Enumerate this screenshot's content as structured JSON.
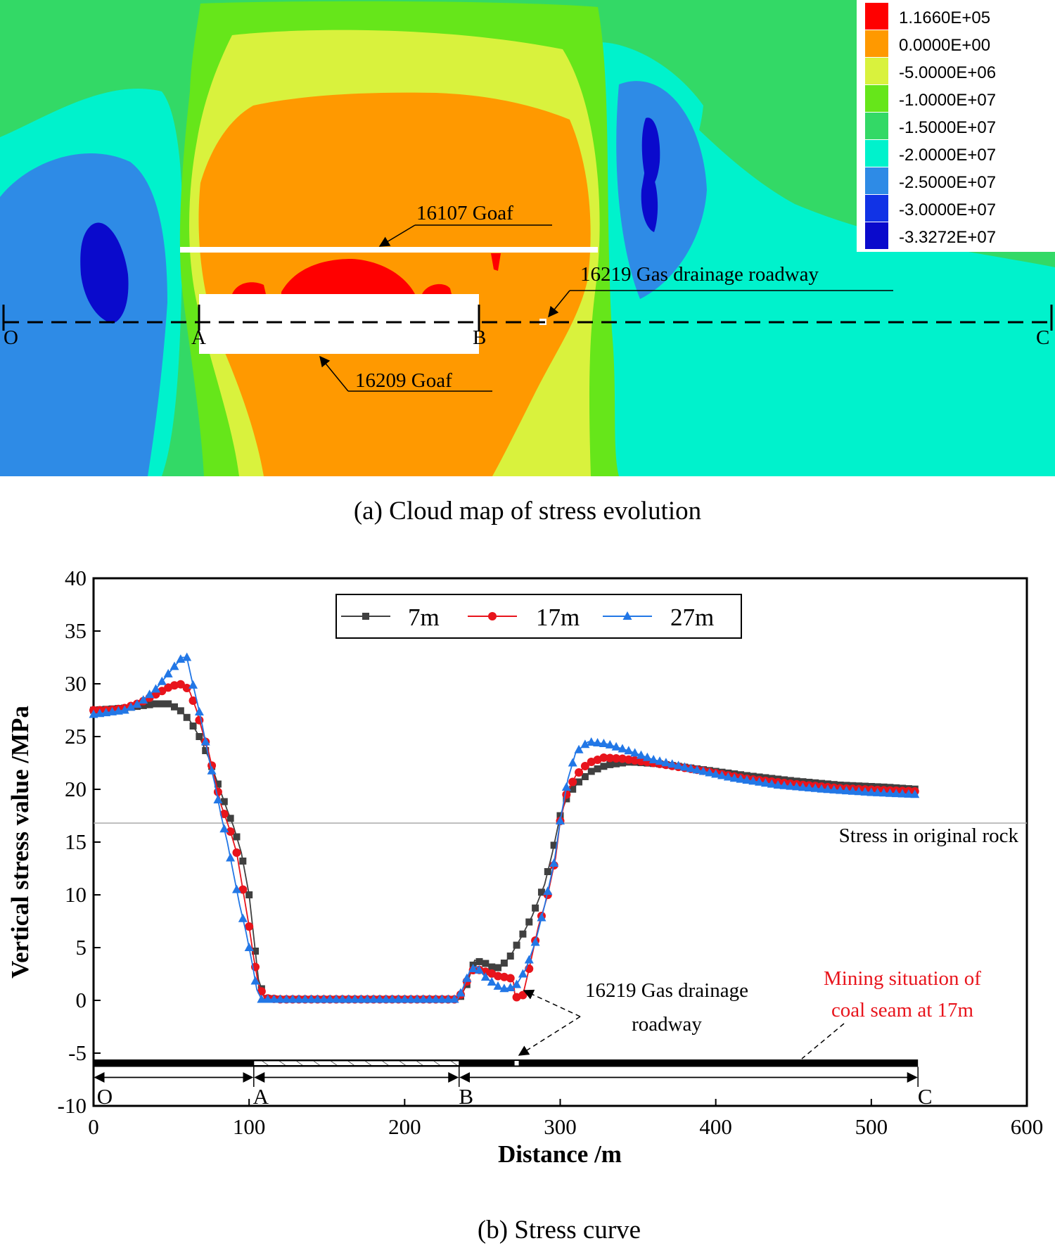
{
  "stress_map": {
    "caption": "(a) Cloud map of stress evolution",
    "legend": [
      {
        "label": "1.1660E+05",
        "color": "#ff0000"
      },
      {
        "label": "0.0000E+00",
        "color": "#ff9900"
      },
      {
        "label": "-5.0000E+06",
        "color": "#d9f23d"
      },
      {
        "label": "-1.0000E+07",
        "color": "#66e61a"
      },
      {
        "label": "-1.5000E+07",
        "color": "#33d966"
      },
      {
        "label": "-2.0000E+07",
        "color": "#00f2cc"
      },
      {
        "label": "-2.5000E+07",
        "color": "#2e8be6"
      },
      {
        "label": "-3.0000E+07",
        "color": "#1133e6"
      },
      {
        "label": "-3.3272E+07",
        "color": "#0a0acc"
      }
    ],
    "labels": {
      "goaf_16107": "16107 Goaf",
      "goaf_16209": "16209 Goaf",
      "roadway": "16219 Gas drainage roadway",
      "point_o": "O",
      "point_a": "A",
      "point_b": "B",
      "point_c": "C"
    },
    "colors": {
      "red": "#ff0000",
      "orange": "#ff9900",
      "yellow": "#d9f23d",
      "lime": "#66e61a",
      "green": "#33d966",
      "cyan": "#00f2cc",
      "lightblue": "#2e8be6",
      "blue": "#1133e6",
      "darkblue": "#0a0acc"
    }
  },
  "chart_data": {
    "type": "line",
    "caption": "(b) Stress curve",
    "xlabel": "Distance /m",
    "ylabel": "Vertical stress value /MPa",
    "xlim": [
      0,
      600
    ],
    "ylim": [
      -10,
      40
    ],
    "xticks": [
      0,
      100,
      200,
      300,
      400,
      500,
      600
    ],
    "yticks": [
      -10,
      -5,
      0,
      5,
      10,
      15,
      20,
      25,
      30,
      35,
      40
    ],
    "legend_position": "top-center",
    "series": [
      {
        "name": "7m",
        "color": "#404040",
        "marker": "square",
        "points": [
          [
            0,
            27.5
          ],
          [
            10,
            27.6
          ],
          [
            20,
            27.7
          ],
          [
            30,
            27.9
          ],
          [
            40,
            28.1
          ],
          [
            48,
            28.1
          ],
          [
            55,
            27.6
          ],
          [
            62,
            26.5
          ],
          [
            68,
            25
          ],
          [
            74,
            23
          ],
          [
            80,
            20.5
          ],
          [
            86,
            18
          ],
          [
            90,
            16.5
          ],
          [
            95,
            14
          ],
          [
            100,
            10
          ],
          [
            103,
            6
          ],
          [
            106,
            2
          ],
          [
            110,
            0.2
          ],
          [
            120,
            0.1
          ],
          [
            235,
            0.1
          ],
          [
            240,
            1.5
          ],
          [
            245,
            3.8
          ],
          [
            252,
            3.5
          ],
          [
            258,
            3
          ],
          [
            262,
            3.2
          ],
          [
            268,
            4.2
          ],
          [
            275,
            6
          ],
          [
            282,
            8
          ],
          [
            290,
            11
          ],
          [
            295,
            14
          ],
          [
            300,
            17.5
          ],
          [
            305,
            19.5
          ],
          [
            312,
            20.7
          ],
          [
            320,
            21.7
          ],
          [
            330,
            22.3
          ],
          [
            345,
            22.6
          ],
          [
            365,
            22.4
          ],
          [
            390,
            21.9
          ],
          [
            420,
            21.3
          ],
          [
            450,
            20.8
          ],
          [
            480,
            20.4
          ],
          [
            510,
            20.2
          ],
          [
            530,
            20.0
          ]
        ]
      },
      {
        "name": "17m",
        "color": "#e8141c",
        "marker": "circle",
        "points": [
          [
            0,
            27.5
          ],
          [
            10,
            27.5
          ],
          [
            20,
            27.7
          ],
          [
            30,
            28.2
          ],
          [
            40,
            29
          ],
          [
            50,
            29.8
          ],
          [
            58,
            30
          ],
          [
            62,
            29.2
          ],
          [
            66,
            27.6
          ],
          [
            70,
            25.5
          ],
          [
            74,
            23.5
          ],
          [
            78,
            21
          ],
          [
            82,
            18.5
          ],
          [
            88,
            16
          ],
          [
            92,
            14
          ],
          [
            96,
            10.5
          ],
          [
            100,
            7
          ],
          [
            103,
            4
          ],
          [
            106,
            1.5
          ],
          [
            110,
            0.2
          ],
          [
            120,
            0.1
          ],
          [
            234,
            0.1
          ],
          [
            238,
            1
          ],
          [
            242,
            2.6
          ],
          [
            245,
            3
          ],
          [
            250,
            2.8
          ],
          [
            255,
            2.6
          ],
          [
            260,
            2.3
          ],
          [
            265,
            2.2
          ],
          [
            268,
            2.1
          ],
          [
            270,
            1.7
          ],
          [
            271,
            0.3
          ],
          [
            274,
            0.3
          ],
          [
            276,
            0.5
          ],
          [
            280,
            3
          ],
          [
            286,
            7
          ],
          [
            292,
            10
          ],
          [
            297,
            13.5
          ],
          [
            300,
            17
          ],
          [
            304,
            19.5
          ],
          [
            310,
            21.3
          ],
          [
            318,
            22.5
          ],
          [
            328,
            23
          ],
          [
            340,
            22.9
          ],
          [
            360,
            22.5
          ],
          [
            390,
            21.8
          ],
          [
            420,
            21
          ],
          [
            450,
            20.5
          ],
          [
            480,
            20.1
          ],
          [
            510,
            19.9
          ],
          [
            530,
            19.8
          ]
        ]
      },
      {
        "name": "27m",
        "color": "#2277e6",
        "marker": "triangle",
        "points": [
          [
            0,
            27.1
          ],
          [
            10,
            27.3
          ],
          [
            20,
            27.5
          ],
          [
            30,
            28.2
          ],
          [
            40,
            29.5
          ],
          [
            50,
            31.3
          ],
          [
            57,
            32.5
          ],
          [
            60,
            32.5
          ],
          [
            63,
            30.5
          ],
          [
            67,
            28
          ],
          [
            70,
            26
          ],
          [
            74,
            23
          ],
          [
            78,
            20.5
          ],
          [
            82,
            17.5
          ],
          [
            86,
            15
          ],
          [
            90,
            12
          ],
          [
            94,
            9
          ],
          [
            98,
            6.5
          ],
          [
            102,
            3.5
          ],
          [
            105,
            1
          ],
          [
            108,
            0.1
          ],
          [
            120,
            0.1
          ],
          [
            234,
            0.1
          ],
          [
            237,
            1
          ],
          [
            242,
            2.8
          ],
          [
            246,
            3.2
          ],
          [
            252,
            2.2
          ],
          [
            258,
            1.5
          ],
          [
            263,
            1.1
          ],
          [
            268,
            1.2
          ],
          [
            272,
            1.5
          ],
          [
            278,
            3
          ],
          [
            284,
            5.5
          ],
          [
            290,
            9
          ],
          [
            296,
            13
          ],
          [
            300,
            17
          ],
          [
            305,
            21
          ],
          [
            310,
            23.5
          ],
          [
            318,
            24.5
          ],
          [
            330,
            24.3
          ],
          [
            345,
            23.6
          ],
          [
            360,
            22.8
          ],
          [
            380,
            22.1
          ],
          [
            410,
            21.1
          ],
          [
            440,
            20.4
          ],
          [
            470,
            20
          ],
          [
            500,
            19.7
          ],
          [
            530,
            19.5
          ]
        ]
      }
    ],
    "reference_line": {
      "value": 16.8,
      "label": "Stress in original rock"
    },
    "annotations": {
      "roadway_line1": "16219 Gas drainage",
      "roadway_line2": "roadway",
      "mining_line1": "Mining situation of",
      "mining_line2": "coal seam at 17m"
    },
    "segments": {
      "points": [
        {
          "label": "O",
          "x": 0
        },
        {
          "label": "A",
          "x": 103
        },
        {
          "label": "B",
          "x": 235
        },
        {
          "label": "C",
          "x": 530
        }
      ],
      "goaf_range": [
        103,
        235
      ],
      "roadway_x": 272,
      "bar_end": 530
    }
  }
}
